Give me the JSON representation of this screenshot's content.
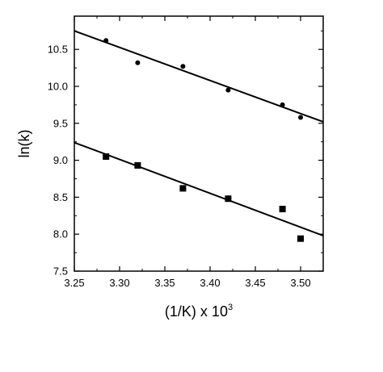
{
  "chart_data": {
    "type": "scatter",
    "title": "",
    "xlabel": "(1/K) x 10",
    "xlabel_superscript": "3",
    "ylabel": "ln(k)",
    "xlim": [
      3.25,
      3.525
    ],
    "ylim": [
      7.5,
      10.95
    ],
    "x_ticks": [
      "3.25",
      "3.30",
      "3.35",
      "3.40",
      "3.45",
      "3.50"
    ],
    "y_ticks": [
      "7.5",
      "8.0",
      "8.5",
      "9.0",
      "9.5",
      "10.0",
      "10.5"
    ],
    "grid": false,
    "legend": "none",
    "series": [
      {
        "marker": "circle",
        "points": [
          {
            "x": 3.285,
            "y": 10.62
          },
          {
            "x": 3.32,
            "y": 10.32
          },
          {
            "x": 3.37,
            "y": 10.27
          },
          {
            "x": 3.42,
            "y": 9.95
          },
          {
            "x": 3.48,
            "y": 9.75
          },
          {
            "x": 3.5,
            "y": 9.58
          }
        ],
        "fit_line": {
          "x": [
            3.25,
            3.525
          ],
          "y": [
            10.75,
            9.52
          ]
        }
      },
      {
        "marker": "square",
        "points": [
          {
            "x": 3.285,
            "y": 9.05
          },
          {
            "x": 3.32,
            "y": 8.93
          },
          {
            "x": 3.37,
            "y": 8.62
          },
          {
            "x": 3.42,
            "y": 8.48
          },
          {
            "x": 3.48,
            "y": 8.34
          },
          {
            "x": 3.5,
            "y": 7.94
          }
        ],
        "fit_line": {
          "x": [
            3.25,
            3.525
          ],
          "y": [
            9.24,
            7.98
          ]
        }
      }
    ]
  }
}
